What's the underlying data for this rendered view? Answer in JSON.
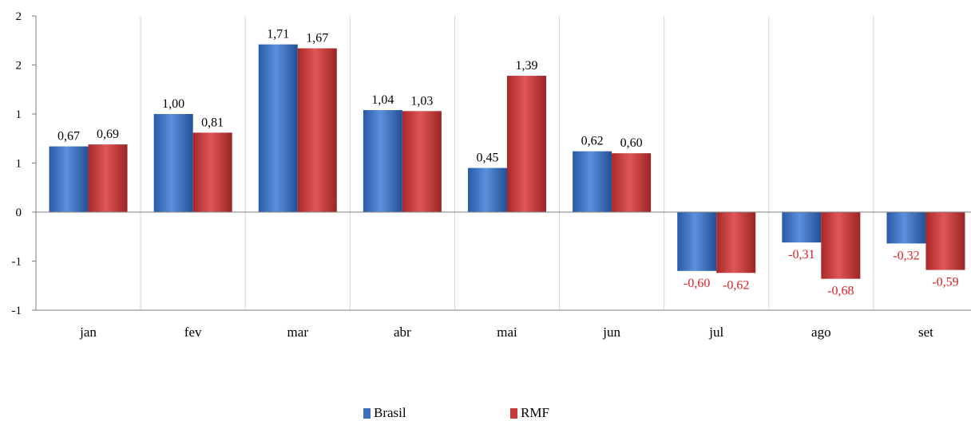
{
  "chart_data": {
    "type": "bar",
    "categories": [
      "jan",
      "fev",
      "mar",
      "abr",
      "mai",
      "jun",
      "jul",
      "ago",
      "set"
    ],
    "series": [
      {
        "name": "Brasil",
        "color": "#3a6fbf",
        "values": [
          0.67,
          1.0,
          1.71,
          1.04,
          0.45,
          0.62,
          -0.6,
          -0.31,
          -0.32
        ],
        "labels": [
          "0,67",
          "1,00",
          "1,71",
          "1,04",
          "0,45",
          "0,62",
          "-0,60",
          "-0,31",
          "-0,32"
        ]
      },
      {
        "name": "RMF",
        "color": "#c63a3a",
        "values": [
          0.69,
          0.81,
          1.67,
          1.03,
          1.39,
          0.6,
          -0.62,
          -0.68,
          -0.59
        ],
        "labels": [
          "0,69",
          "0,81",
          "1,67",
          "1,03",
          "1,39",
          "0,60",
          "-0,62",
          "-0,68",
          "-0,59"
        ]
      }
    ],
    "ylim": [
      -1.0,
      2.0
    ],
    "yticks": [
      2.0,
      1.5,
      1.0,
      0.5,
      0.0,
      -0.5,
      -1.0
    ],
    "ytick_labels": [
      "2",
      "2",
      "1",
      "1",
      "0",
      "-1",
      "-1"
    ],
    "positive_label_color": "#000000",
    "negative_label_color": "#e02020",
    "grid": "vertical separators between categories",
    "legend_position": "bottom"
  }
}
